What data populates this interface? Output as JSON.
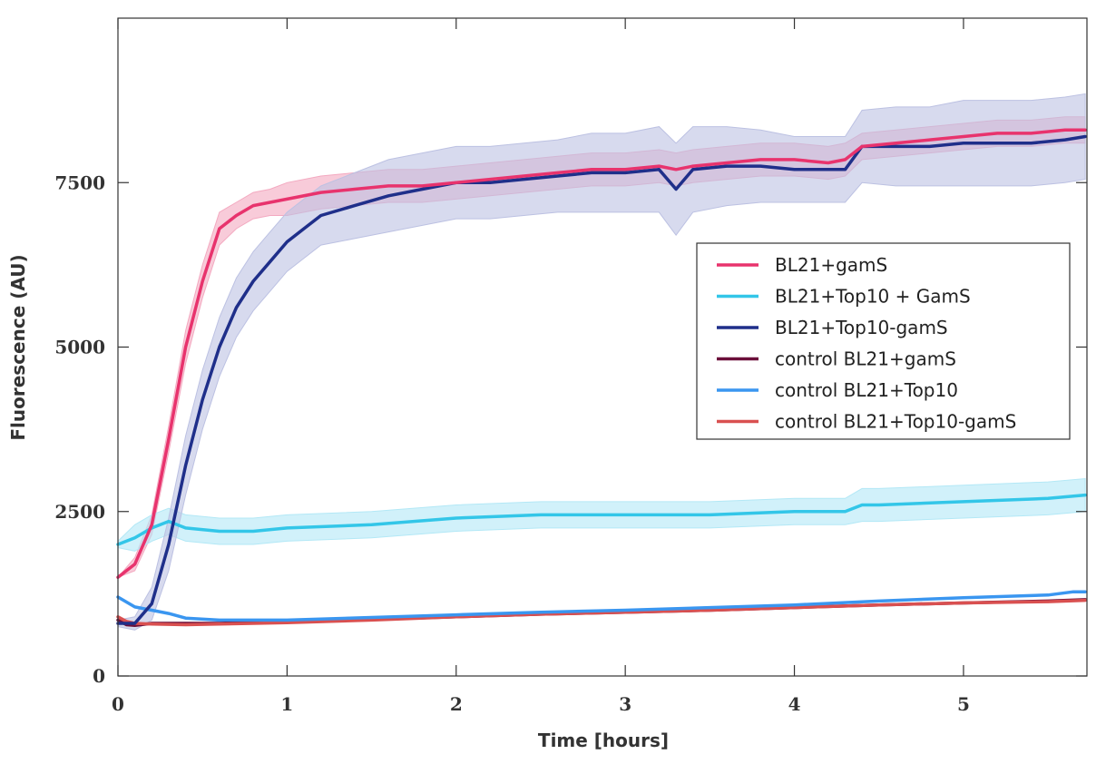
{
  "chart_data": {
    "type": "line",
    "title": "",
    "xlabel": "Time [hours]",
    "ylabel": "Fluorescence (AU)",
    "xlim": [
      0,
      5.73
    ],
    "ylim": [
      0,
      10000
    ],
    "xticks": [
      0,
      1,
      2,
      3,
      4,
      5
    ],
    "yticks": [
      0,
      2500,
      5000,
      7500
    ],
    "grid": false,
    "legend_position": "center-right",
    "series": [
      {
        "name": "BL21+gamS",
        "color": "#e8336d",
        "band_color": "#f3a9c0",
        "x": [
          0,
          0.1,
          0.2,
          0.3,
          0.4,
          0.5,
          0.55,
          0.6,
          0.7,
          0.8,
          0.9,
          1.0,
          1.2,
          1.4,
          1.6,
          1.8,
          2.0,
          2.2,
          2.4,
          2.6,
          2.8,
          3.0,
          3.2,
          3.3,
          3.4,
          3.6,
          3.8,
          4.0,
          4.2,
          4.3,
          4.4,
          4.6,
          4.8,
          5.0,
          5.2,
          5.4,
          5.6,
          5.72
        ],
        "y": [
          1500,
          1700,
          2300,
          3600,
          5000,
          6000,
          6400,
          6800,
          7000,
          7150,
          7200,
          7250,
          7350,
          7400,
          7450,
          7450,
          7500,
          7550,
          7600,
          7650,
          7700,
          7700,
          7750,
          7700,
          7750,
          7800,
          7850,
          7850,
          7800,
          7850,
          8050,
          8100,
          8150,
          8200,
          8250,
          8250,
          8300,
          8300
        ],
        "band": [
          0,
          100,
          150,
          200,
          250,
          250,
          250,
          250,
          200,
          200,
          200,
          250,
          250,
          250,
          250,
          250,
          250,
          250,
          250,
          250,
          250,
          250,
          250,
          250,
          250,
          250,
          250,
          250,
          250,
          250,
          200,
          200,
          200,
          200,
          200,
          200,
          200,
          200
        ]
      },
      {
        "name": "BL21+Top10 + GamS",
        "color": "#33c6e8",
        "band_color": "#b3e8f6",
        "x": [
          0,
          0.1,
          0.2,
          0.3,
          0.4,
          0.6,
          0.8,
          1.0,
          1.5,
          2.0,
          2.5,
          3.0,
          3.5,
          4.0,
          4.3,
          4.4,
          4.5,
          5.0,
          5.5,
          5.72
        ],
        "y": [
          2000,
          2100,
          2250,
          2350,
          2250,
          2200,
          2200,
          2250,
          2300,
          2400,
          2450,
          2450,
          2450,
          2500,
          2500,
          2600,
          2600,
          2650,
          2700,
          2750
        ],
        "band": [
          50,
          200,
          200,
          200,
          200,
          200,
          200,
          200,
          200,
          200,
          200,
          200,
          200,
          200,
          200,
          250,
          250,
          250,
          250,
          250
        ]
      },
      {
        "name": "BL21+Top10-gamS",
        "color": "#1f2f8a",
        "band_color": "#bcc1e2",
        "x": [
          0,
          0.1,
          0.2,
          0.3,
          0.4,
          0.5,
          0.6,
          0.7,
          0.8,
          0.9,
          1.0,
          1.1,
          1.2,
          1.4,
          1.6,
          1.8,
          2.0,
          2.2,
          2.4,
          2.6,
          2.8,
          3.0,
          3.2,
          3.3,
          3.4,
          3.6,
          3.8,
          4.0,
          4.2,
          4.3,
          4.4,
          4.6,
          4.8,
          5.0,
          5.2,
          5.4,
          5.6,
          5.72
        ],
        "y": [
          800,
          800,
          1100,
          2000,
          3200,
          4200,
          5000,
          5600,
          6000,
          6300,
          6600,
          6800,
          7000,
          7150,
          7300,
          7400,
          7500,
          7500,
          7550,
          7600,
          7650,
          7650,
          7700,
          7400,
          7700,
          7750,
          7750,
          7700,
          7700,
          7700,
          8050,
          8050,
          8050,
          8100,
          8100,
          8100,
          8150,
          8200
        ],
        "band": [
          50,
          100,
          250,
          400,
          450,
          450,
          450,
          450,
          450,
          450,
          450,
          450,
          450,
          500,
          550,
          550,
          550,
          550,
          550,
          550,
          600,
          600,
          650,
          700,
          650,
          600,
          550,
          500,
          500,
          500,
          550,
          600,
          600,
          650,
          650,
          650,
          650,
          650
        ]
      },
      {
        "name": "control BL21+gamS",
        "color": "#6b0f3a",
        "x": [
          0,
          0.05,
          0.1,
          0.2,
          0.4,
          0.6,
          0.8,
          1.0,
          1.5,
          2.0,
          2.5,
          3.0,
          3.5,
          4.0,
          4.5,
          5.0,
          5.5,
          5.72
        ],
        "y": [
          850,
          780,
          770,
          800,
          800,
          800,
          820,
          830,
          860,
          900,
          940,
          970,
          1000,
          1040,
          1080,
          1110,
          1140,
          1160
        ]
      },
      {
        "name": "control BL21+Top10",
        "color": "#3a96f0",
        "x": [
          0,
          0.1,
          0.2,
          0.3,
          0.4,
          0.6,
          0.8,
          1.0,
          1.5,
          2.0,
          2.5,
          3.0,
          3.5,
          4.0,
          4.5,
          5.0,
          5.5,
          5.65,
          5.72
        ],
        "y": [
          1200,
          1050,
          1000,
          950,
          880,
          850,
          850,
          850,
          890,
          930,
          970,
          1000,
          1040,
          1080,
          1140,
          1190,
          1230,
          1280,
          1280
        ]
      },
      {
        "name": "control BL21+Top10-gamS",
        "color": "#d95050",
        "x": [
          0,
          0.05,
          0.1,
          0.2,
          0.4,
          0.6,
          0.8,
          1.0,
          1.5,
          2.0,
          2.5,
          3.0,
          3.5,
          4.0,
          4.5,
          5.0,
          5.5,
          5.72
        ],
        "y": [
          900,
          830,
          800,
          790,
          780,
          790,
          800,
          810,
          850,
          900,
          940,
          970,
          1000,
          1040,
          1080,
          1110,
          1130,
          1150
        ]
      }
    ]
  }
}
